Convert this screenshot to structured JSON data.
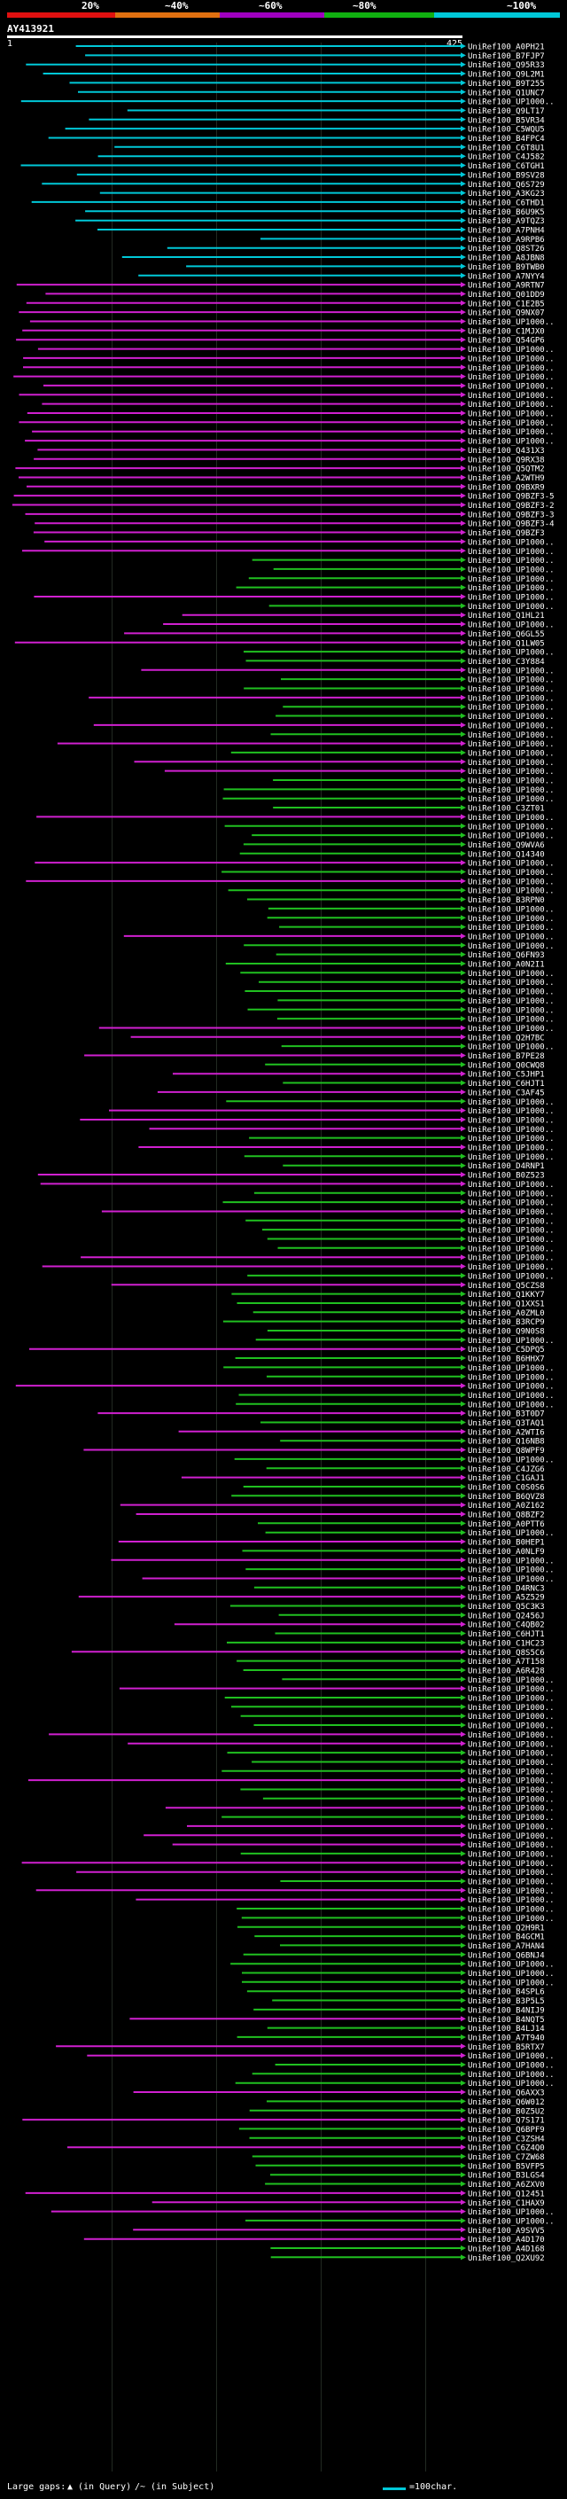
{
  "header": {
    "percent_labels": [
      "20%",
      "~40%",
      "~60%",
      "~80%",
      "~100%"
    ],
    "colors": [
      "#e01010",
      "#e07010",
      "#a000c0",
      "#10b010",
      "#00c8d8"
    ]
  },
  "query": {
    "id": "AY413921",
    "start_label": "1",
    "end_label": "425"
  },
  "footer": {
    "gaps_label": "Large gaps:",
    "query_gap_label": "(in Query)",
    "subject_gap_label": "(in Subject)",
    "scale_label": "=100char."
  },
  "hit_colors": {
    "cyan": "#00c8d8",
    "magenta": "#d020d0",
    "green": "#20c020"
  },
  "hit_labels": [
    "UniRef100_A0PH21",
    "UniRef100_B7FJP7",
    "UniRef100_Q95R33",
    "UniRef100_Q9L2M1",
    "UniRef100_B9T255",
    "UniRef100_Q1UNC7",
    "UniRef100_UP1000..",
    "UniRef100_Q9LT17",
    "UniRef100_B5VR34",
    "UniRef100_C5WQU5",
    "UniRef100_B4FPC4",
    "UniRef100_C6T8U1",
    "UniRef100_C4J582",
    "UniRef100_C6TGH1",
    "UniRef100_B9SV28",
    "UniRef100_Q6S729",
    "UniRef100_A3KG23",
    "UniRef100_C6THD1",
    "UniRef100_B6U9K5",
    "UniRef100_A9TQZ3",
    "UniRef100_A7PNH4",
    "UniRef100_A9RPB6",
    "UniRef100_Q8ST26",
    "UniRef100_A8JBN8",
    "UniRef100_B9TWB0",
    "UniRef100_A7NYY4",
    "UniRef100_A9RTN7",
    "UniRef100_Q01DD9",
    "UniRef100_C1E2B5",
    "UniRef100_Q9NX07",
    "UniRef100_UP1000..",
    "UniRef100_C1MJX0",
    "UniRef100_Q54GP6",
    "UniRef100_UP1000..",
    "UniRef100_UP1000..",
    "UniRef100_UP1000..",
    "UniRef100_UP1000..",
    "UniRef100_UP1000..",
    "UniRef100_UP1000..",
    "UniRef100_UP1000..",
    "UniRef100_UP1000..",
    "UniRef100_UP1000..",
    "UniRef100_UP1000..",
    "UniRef100_UP1000..",
    "UniRef100_Q431X3",
    "UniRef100_Q9RX38",
    "UniRef100_Q5QTM2",
    "UniRef100_A2WTH9",
    "UniRef100_Q9BXR9",
    "UniRef100_Q9BZF3-5",
    "UniRef100_Q9BZF3-2",
    "UniRef100_Q9BZF3-3",
    "UniRef100_Q9BZF3-4",
    "UniRef100_Q9BZF3",
    "UniRef100_UP1000..",
    "UniRef100_UP1000..",
    "UniRef100_UP1000..",
    "UniRef100_UP1000..",
    "UniRef100_UP1000..",
    "UniRef100_UP1000..",
    "UniRef100_UP1000..",
    "UniRef100_UP1000..",
    "UniRef100_Q1HL21",
    "UniRef100_UP1000..",
    "UniRef100_Q6GL55",
    "UniRef100_Q1LW05",
    "UniRef100_UP1000..",
    "UniRef100_C3Y884",
    "UniRef100_UP1000..",
    "UniRef100_UP1000..",
    "UniRef100_UP1000..",
    "UniRef100_UP1000..",
    "UniRef100_UP1000..",
    "UniRef100_UP1000..",
    "UniRef100_UP1000..",
    "UniRef100_UP1000..",
    "UniRef100_UP1000..",
    "UniRef100_UP1000..",
    "UniRef100_UP1000..",
    "UniRef100_UP1000..",
    "UniRef100_UP1000..",
    "UniRef100_UP1000..",
    "UniRef100_UP1000..",
    "UniRef100_C3ZT01",
    "UniRef100_UP1000..",
    "UniRef100_UP1000..",
    "UniRef100_UP1000..",
    "UniRef100_Q9WVA6",
    "UniRef100_Q14340",
    "UniRef100_UP1000..",
    "UniRef100_UP1000..",
    "UniRef100_UP1000..",
    "UniRef100_UP1000..",
    "UniRef100_B3RPN0",
    "UniRef100_UP1000..",
    "UniRef100_UP1000..",
    "UniRef100_UP1000..",
    "UniRef100_UP1000..",
    "UniRef100_UP1000..",
    "UniRef100_Q6FN93",
    "UniRef100_A0N2I1",
    "UniRef100_UP1000..",
    "UniRef100_UP1000..",
    "UniRef100_UP1000..",
    "UniRef100_UP1000..",
    "UniRef100_UP1000..",
    "UniRef100_UP1000..",
    "UniRef100_UP1000..",
    "UniRef100_Q2H7BC",
    "UniRef100_UP1000..",
    "UniRef100_B7PE28",
    "UniRef100_Q0CWQ8",
    "UniRef100_C5JHP1",
    "UniRef100_C6HJT1",
    "UniRef100_C3AF45",
    "UniRef100_UP1000..",
    "UniRef100_UP1000..",
    "UniRef100_UP1000..",
    "UniRef100_UP1000..",
    "UniRef100_UP1000..",
    "UniRef100_UP1000..",
    "UniRef100_UP1000..",
    "UniRef100_D4RNP1",
    "UniRef100_B0Z523",
    "UniRef100_UP1000..",
    "UniRef100_UP1000..",
    "UniRef100_UP1000..",
    "UniRef100_UP1000..",
    "UniRef100_UP1000..",
    "UniRef100_UP1000..",
    "UniRef100_UP1000..",
    "UniRef100_UP1000..",
    "UniRef100_UP1000..",
    "UniRef100_UP1000..",
    "UniRef100_UP1000..",
    "UniRef100_Q5CZS8",
    "UniRef100_Q1KKY7",
    "UniRef100_Q1XXS1",
    "UniRef100_A0ZML0",
    "UniRef100_B3RCP9",
    "UniRef100_Q9N0S8",
    "UniRef100_UP1000..",
    "UniRef100_C5DPQ5",
    "UniRef100_B6HHX7",
    "UniRef100_UP1000..",
    "UniRef100_UP1000..",
    "UniRef100_UP1000..",
    "UniRef100_UP1000..",
    "UniRef100_UP1000..",
    "UniRef100_B3T0D7",
    "UniRef100_Q3TAQ1",
    "UniRef100_A2WTI6",
    "UniRef100_Q16NB8",
    "UniRef100_Q8WPF9",
    "UniRef100_UP1000..",
    "UniRef100_C4JZG6",
    "UniRef100_C1GAJ1",
    "UniRef100_C0S0S6",
    "UniRef100_B6QVZ8",
    "UniRef100_A0Z162",
    "UniRef100_Q8BZF2",
    "UniRef100_A0PTT6",
    "UniRef100_UP1000..",
    "UniRef100_B0HEP1",
    "UniRef100_A0NLF9",
    "UniRef100_UP1000..",
    "UniRef100_UP1000..",
    "UniRef100_UP1000..",
    "UniRef100_D4RNC3",
    "UniRef100_A5Z529",
    "UniRef100_Q5C3K3",
    "UniRef100_Q2456J",
    "UniRef100_C4QB02",
    "UniRef100_C6HJT1",
    "UniRef100_C1HC23",
    "UniRef100_Q8S5C6",
    "UniRef100_A7T158",
    "UniRef100_A6R428",
    "UniRef100_UP1000..",
    "UniRef100_UP1000..",
    "UniRef100_UP1000..",
    "UniRef100_UP1000..",
    "UniRef100_UP1000..",
    "UniRef100_UP1000..",
    "UniRef100_UP1000..",
    "UniRef100_UP1000..",
    "UniRef100_UP1000..",
    "UniRef100_UP1000..",
    "UniRef100_UP1000..",
    "UniRef100_UP1000..",
    "UniRef100_UP1000..",
    "UniRef100_UP1000..",
    "UniRef100_UP1000..",
    "UniRef100_UP1000..",
    "UniRef100_UP1000..",
    "UniRef100_UP1000..",
    "UniRef100_UP1000..",
    "UniRef100_UP1000..",
    "UniRef100_UP1000..",
    "UniRef100_UP1000..",
    "UniRef100_UP1000..",
    "UniRef100_UP1000..",
    "UniRef100_UP1000..",
    "UniRef100_UP1000..",
    "UniRef100_UP1000..",
    "UniRef100_Q2H9R1",
    "UniRef100_B4GCM1",
    "UniRef100_A7HAN4",
    "UniRef100_Q6BNJ4",
    "UniRef100_UP1000..",
    "UniRef100_UP1000..",
    "UniRef100_UP1000..",
    "UniRef100_B4SPL6",
    "UniRef100_B3P5L5",
    "UniRef100_B4NIJ9",
    "UniRef100_B4NQT5",
    "UniRef100_B4LJ14",
    "UniRef100_A7T940",
    "UniRef100_B5RTX7",
    "UniRef100_UP1000..",
    "UniRef100_UP1000..",
    "UniRef100_UP1000..",
    "UniRef100_UP1000..",
    "UniRef100_Q6AXX3",
    "UniRef100_Q6W012",
    "UniRef100_B0Z5U2",
    "UniRef100_Q7S171",
    "UniRef100_Q6BPF9",
    "UniRef100_C3ZSH4",
    "UniRef100_C6Z4Q0",
    "UniRef100_C7ZW68",
    "UniRef100_B5VFP5",
    "UniRef100_B3LGS4",
    "UniRef100_A6ZXV0",
    "UniRef100_Q12451",
    "UniRef100_C1HAX9",
    "UniRef100_UP1000..",
    "UniRef100_UP1000..",
    "UniRef100_A9SVV5",
    "UniRef100_A4D170",
    "UniRef100_A4D168",
    "UniRef100_Q2XU92"
  ]
}
